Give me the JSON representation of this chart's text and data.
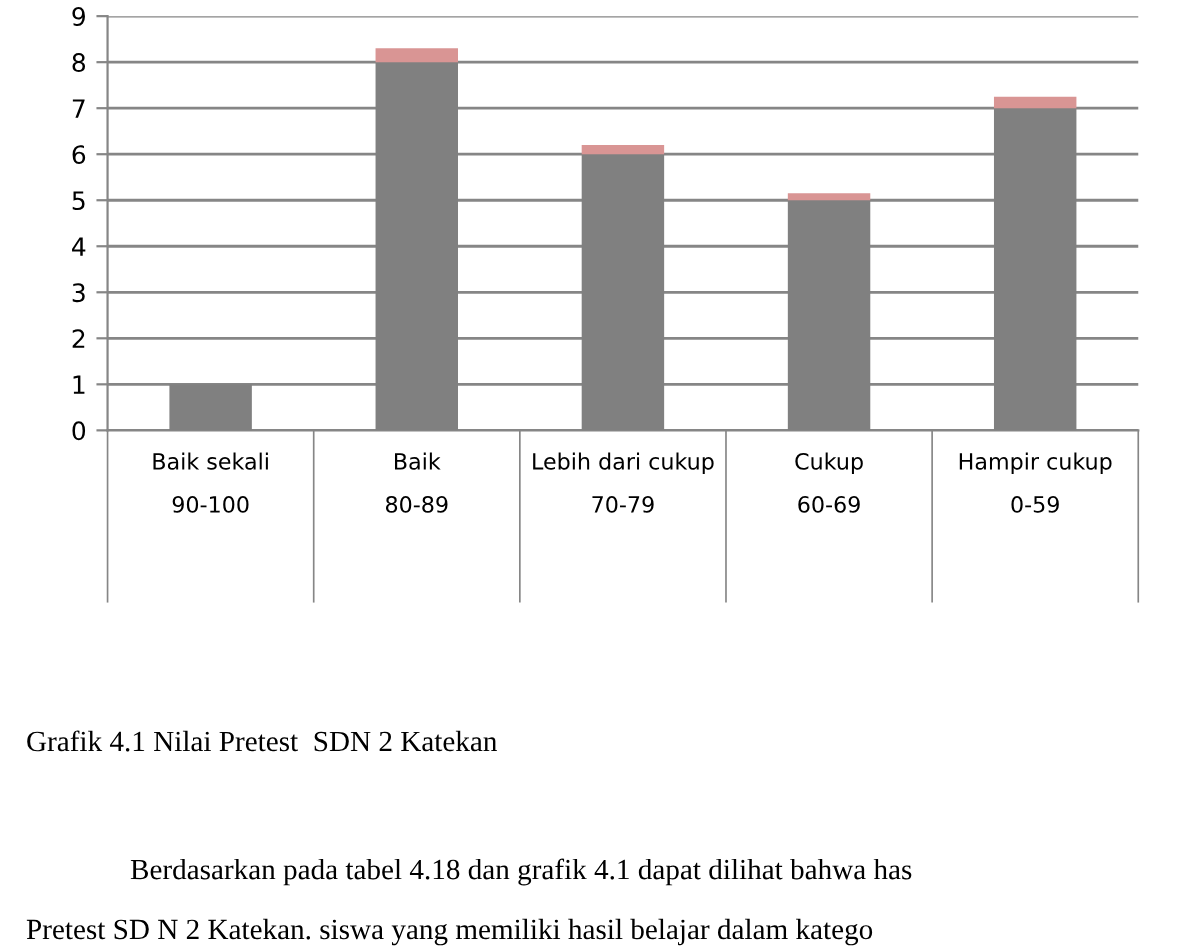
{
  "chart_data": {
    "type": "bar",
    "stacked": true,
    "categories": [
      "Baik sekali\n\n90-100",
      "Baik\n\n80-89",
      "Lebih dari cukup\n\n70-79",
      "Cukup\n\n60-69",
      "Hampir cukup\n\n0-59"
    ],
    "series": [
      {
        "color": "#808080",
        "values": [
          1,
          8,
          6,
          5,
          7
        ]
      },
      {
        "color": "#d99594",
        "values": [
          0,
          0.3,
          0.2,
          0.15,
          0.25
        ]
      }
    ],
    "ylim": [
      0,
      9
    ],
    "yticks": [
      0,
      1,
      2,
      3,
      4,
      5,
      6,
      7,
      8,
      9
    ],
    "grid": "y",
    "legend": false,
    "annotations": [
      "Grafik 4.1 Nilai Pretest  SDN 2 Katekan",
      "Berdasarkan pada tabel 4.18 dan grafik 4.1 dapat dilihat bahwa has",
      "Pretest SD N 2 Katekan. siswa yang memiliki hasil belajar dalam katego"
    ]
  }
}
